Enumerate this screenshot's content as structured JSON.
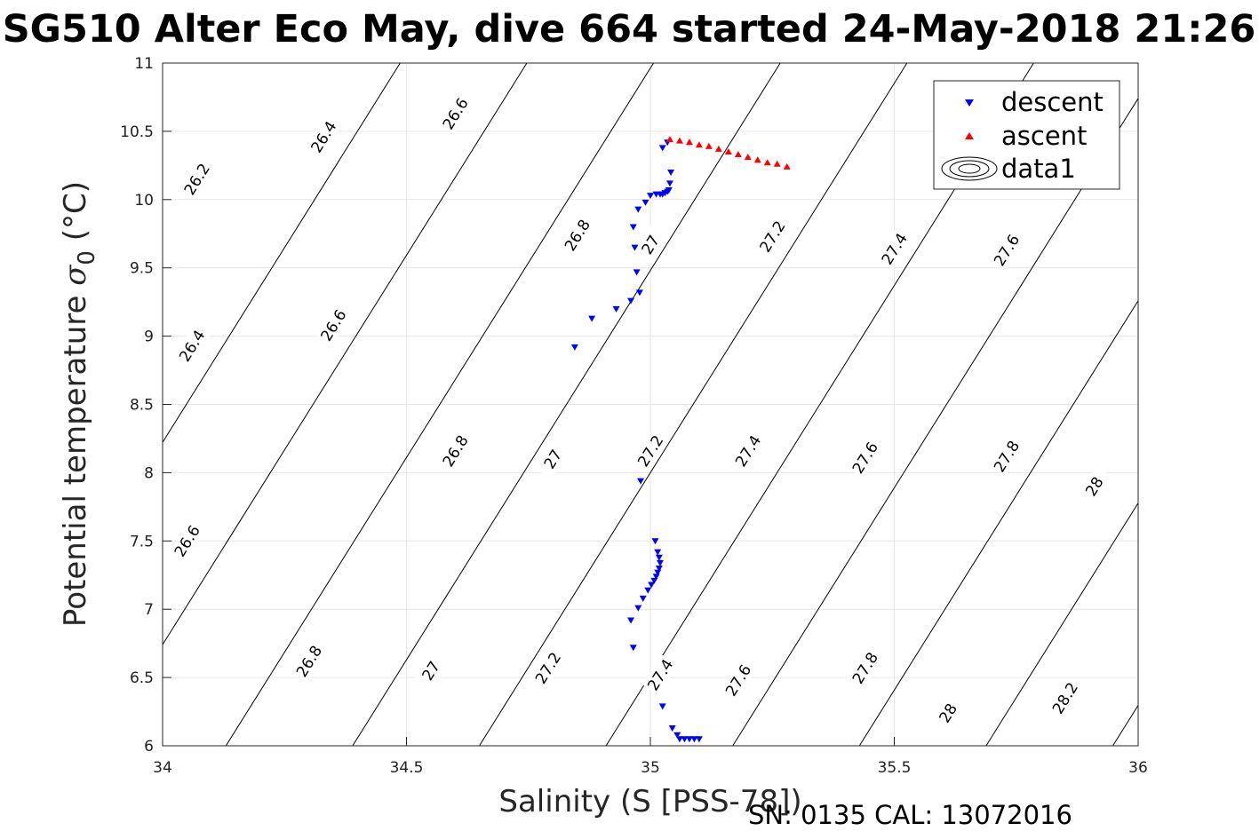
{
  "title": "SG510 Alter Eco May, dive 664 started 24-May-2018 21:26",
  "footer": "SN: 0135  CAL: 13072016",
  "chart_data": {
    "type": "scatter",
    "xlabel": "Salinity (S [PSS-78])",
    "ylabel_text": "Potential temperature ",
    "ylabel_symbol": "σ",
    "ylabel_subscript": "0",
    "ylabel_unit": " (°C)",
    "xlim": [
      34,
      36
    ],
    "ylim": [
      6,
      11
    ],
    "xticks": [
      "34",
      "34.5",
      "35",
      "35.5",
      "36"
    ],
    "yticks": [
      "6",
      "6.5",
      "7",
      "7.5",
      "8",
      "8.5",
      "9",
      "9.5",
      "10",
      "10.5",
      "11"
    ],
    "grid": true,
    "legend_position": "top-right",
    "legend": [
      {
        "name": "descent",
        "marker": "triangle-down",
        "color": "#0000ff"
      },
      {
        "name": "ascent",
        "marker": "triangle-up",
        "color": "#ff0000"
      },
      {
        "name": "data1",
        "marker": "contour",
        "color": "#000000"
      }
    ],
    "series": [
      {
        "name": "descent",
        "color": "#0000ff",
        "marker": "triangle-down",
        "points": [
          [
            35.025,
            10.38
          ],
          [
            35.035,
            10.42
          ],
          [
            35.042,
            10.2
          ],
          [
            35.04,
            10.12
          ],
          [
            35.038,
            10.07
          ],
          [
            35.035,
            10.06
          ],
          [
            35.03,
            10.05
          ],
          [
            35.025,
            10.04
          ],
          [
            35.02,
            10.04
          ],
          [
            35.012,
            10.04
          ],
          [
            35.0,
            10.03
          ],
          [
            34.99,
            9.98
          ],
          [
            34.975,
            9.93
          ],
          [
            34.965,
            9.8
          ],
          [
            34.968,
            9.65
          ],
          [
            34.972,
            9.47
          ],
          [
            34.978,
            9.32
          ],
          [
            34.96,
            9.26
          ],
          [
            34.93,
            9.2
          ],
          [
            34.88,
            9.13
          ],
          [
            34.845,
            8.92
          ],
          [
            34.98,
            7.94
          ],
          [
            35.01,
            7.5
          ],
          [
            35.015,
            7.42
          ],
          [
            35.018,
            7.38
          ],
          [
            35.02,
            7.34
          ],
          [
            35.018,
            7.3
          ],
          [
            35.015,
            7.27
          ],
          [
            35.012,
            7.24
          ],
          [
            35.008,
            7.21
          ],
          [
            35.002,
            7.18
          ],
          [
            34.995,
            7.14
          ],
          [
            34.985,
            7.08
          ],
          [
            34.975,
            7.01
          ],
          [
            34.96,
            6.92
          ],
          [
            34.965,
            6.72
          ],
          [
            35.025,
            6.29
          ],
          [
            35.045,
            6.13
          ],
          [
            35.055,
            6.08
          ],
          [
            35.06,
            6.05
          ],
          [
            35.07,
            6.05
          ],
          [
            35.08,
            6.05
          ],
          [
            35.09,
            6.05
          ],
          [
            35.1,
            6.05
          ]
        ]
      },
      {
        "name": "ascent",
        "color": "#ff0000",
        "marker": "triangle-up",
        "points": [
          [
            35.04,
            10.44
          ],
          [
            35.06,
            10.43
          ],
          [
            35.08,
            10.42
          ],
          [
            35.1,
            10.4
          ],
          [
            35.12,
            10.39
          ],
          [
            35.14,
            10.37
          ],
          [
            35.16,
            10.35
          ],
          [
            35.18,
            10.33
          ],
          [
            35.2,
            10.31
          ],
          [
            35.22,
            10.29
          ],
          [
            35.24,
            10.27
          ],
          [
            35.26,
            10.26
          ],
          [
            35.28,
            10.24
          ]
        ]
      }
    ],
    "contours": [
      {
        "label": "26.2",
        "label_points": [
          [
            34.07,
            10.15
          ]
        ]
      },
      {
        "label": "26.4",
        "label_points": [
          [
            34.33,
            10.46
          ],
          [
            34.06,
            8.93
          ]
        ]
      },
      {
        "label": "26.6",
        "label_points": [
          [
            34.6,
            10.63
          ],
          [
            34.35,
            9.08
          ],
          [
            34.05,
            7.5
          ]
        ]
      },
      {
        "label": "26.8",
        "label_points": [
          [
            34.85,
            9.74
          ],
          [
            34.6,
            8.16
          ],
          [
            34.3,
            6.62
          ]
        ]
      },
      {
        "label": "27",
        "label_points": [
          [
            35.0,
            9.67
          ],
          [
            34.8,
            8.1
          ],
          [
            34.55,
            6.55
          ]
        ]
      },
      {
        "label": "27.2",
        "label_points": [
          [
            35.25,
            9.73
          ],
          [
            35.0,
            8.16
          ],
          [
            34.79,
            6.57
          ]
        ]
      },
      {
        "label": "27.4",
        "label_points": [
          [
            35.5,
            9.64
          ],
          [
            35.2,
            8.16
          ],
          [
            35.02,
            6.52
          ]
        ]
      },
      {
        "label": "27.6",
        "label_points": [
          [
            35.73,
            9.63
          ],
          [
            35.44,
            8.11
          ],
          [
            35.18,
            6.48
          ]
        ]
      },
      {
        "label": "27.8",
        "label_points": [
          [
            35.73,
            8.12
          ],
          [
            35.44,
            6.57
          ]
        ]
      },
      {
        "label": "28",
        "label_points": [
          [
            35.91,
            7.9
          ],
          [
            35.61,
            6.24
          ]
        ]
      },
      {
        "label": "28.2",
        "label_points": [
          [
            35.85,
            6.35
          ]
        ]
      }
    ]
  }
}
